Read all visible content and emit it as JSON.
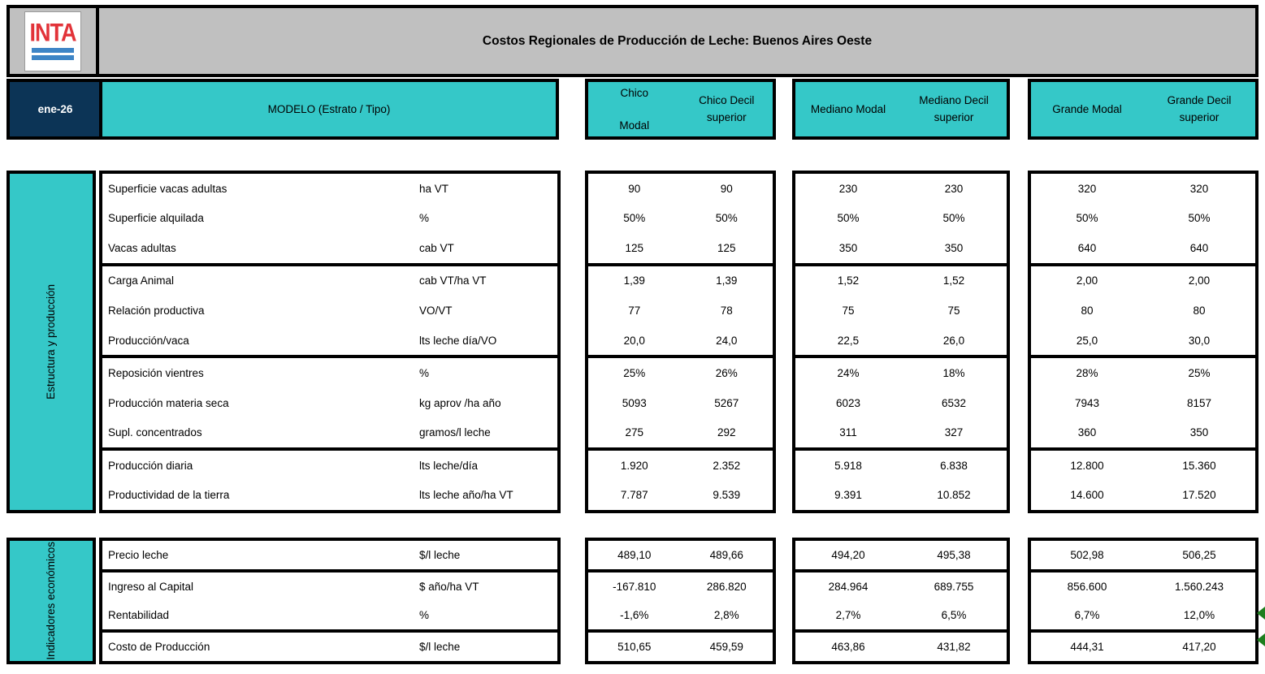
{
  "header": {
    "logo_text": "INTA",
    "title": "Costos Regionales de Producción de Leche: Buenos Aires Oeste",
    "date": "ene-26",
    "model_label": "MODELO (Estrato / Tipo)",
    "column_groups": [
      {
        "col1": "Chico Modal",
        "col2": "Chico Decil superior"
      },
      {
        "col1": "Mediano Modal",
        "col2": "Mediano Decil superior"
      },
      {
        "col1": "Grande Modal",
        "col2": "Grande Decil superior"
      }
    ]
  },
  "sections": [
    {
      "label": "Estructura y producción",
      "row_groups": [
        {
          "rows": [
            {
              "label": "Superficie vacas adultas",
              "unit": "ha VT",
              "values": [
                "90",
                "90",
                "230",
                "230",
                "320",
                "320"
              ]
            },
            {
              "label": "Superficie alquilada",
              "unit": "%",
              "values": [
                "50%",
                "50%",
                "50%",
                "50%",
                "50%",
                "50%"
              ]
            },
            {
              "label": "Vacas adultas",
              "unit": "cab VT",
              "values": [
                "125",
                "125",
                "350",
                "350",
                "640",
                "640"
              ]
            }
          ]
        },
        {
          "rows": [
            {
              "label": "Carga Animal",
              "unit": "cab VT/ha VT",
              "values": [
                "1,39",
                "1,39",
                "1,52",
                "1,52",
                "2,00",
                "2,00"
              ]
            },
            {
              "label": "Relación productiva",
              "unit": "VO/VT",
              "values": [
                "77",
                "78",
                "75",
                "75",
                "80",
                "80"
              ]
            },
            {
              "label": "Producción/vaca",
              "unit": "lts leche día/VO",
              "values": [
                "20,0",
                "24,0",
                "22,5",
                "26,0",
                "25,0",
                "30,0"
              ]
            }
          ]
        },
        {
          "rows": [
            {
              "label": "Reposición vientres",
              "unit": "%",
              "values": [
                "25%",
                "26%",
                "24%",
                "18%",
                "28%",
                "25%"
              ]
            },
            {
              "label": "Producción materia seca",
              "unit": "kg aprov /ha año",
              "values": [
                "5093",
                "5267",
                "6023",
                "6532",
                "7943",
                "8157"
              ]
            },
            {
              "label": "Supl. concentrados",
              "unit": "gramos/l leche",
              "values": [
                "275",
                "292",
                "311",
                "327",
                "360",
                "350"
              ]
            }
          ]
        },
        {
          "rows": [
            {
              "label": "Producción diaria",
              "unit": "lts leche/día",
              "values": [
                "1.920",
                "2.352",
                "5.918",
                "6.838",
                "12.800",
                "15.360"
              ]
            },
            {
              "label": "Productividad de la tierra",
              "unit": "lts leche año/ha VT",
              "values": [
                "7.787",
                "9.539",
                "9.391",
                "10.852",
                "14.600",
                "17.520"
              ]
            }
          ]
        }
      ]
    },
    {
      "label": "Indicadores económicos",
      "row_groups": [
        {
          "rows": [
            {
              "label": "Precio leche",
              "unit": "$/l leche",
              "values": [
                "489,10",
                "489,66",
                "494,20",
                "495,38",
                "502,98",
                "506,25"
              ]
            }
          ]
        },
        {
          "rows": [
            {
              "label": "Ingreso al Capital",
              "unit": "$ año/ha VT",
              "values": [
                "-167.810",
                "286.820",
                "284.964",
                "689.755",
                "856.600",
                "1.560.243"
              ]
            },
            {
              "label": "Rentabilidad",
              "unit": "%",
              "values": [
                "-1,6%",
                "2,8%",
                "2,7%",
                "6,5%",
                "6,7%",
                "12,0%"
              ]
            }
          ]
        },
        {
          "rows": [
            {
              "label": "Costo de Producción",
              "unit": "$/l leche",
              "values": [
                "510,65",
                "459,59",
                "463,86",
                "431,82",
                "444,31",
                "417,20"
              ]
            }
          ]
        }
      ]
    }
  ],
  "colors": {
    "teal": "#35c8c8",
    "navy": "#0c3456",
    "silver": "#c0c0c0",
    "inta_red": "#e23339",
    "inta_blue": "#3e85c6",
    "marker_green": "#1e7e1e"
  }
}
